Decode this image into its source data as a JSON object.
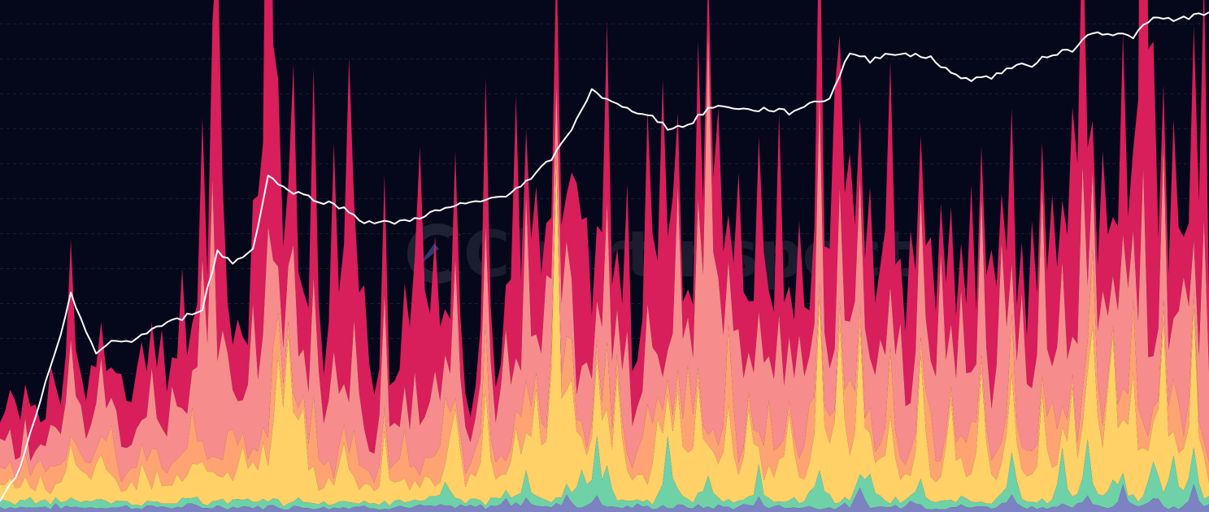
{
  "watermark": {
    "text": "Chartinspect"
  },
  "chart_data": {
    "type": "area",
    "title": "",
    "xlabel": "",
    "ylabel": "",
    "grid": true,
    "legend": "none",
    "background": "#05071a",
    "grid_color": "#2a2d40",
    "price_color": "#ffffff",
    "n_points": 240,
    "price_log_scale": true,
    "price_ylim": [
      1,
      1000
    ],
    "stack_ylim": [
      0,
      100
    ],
    "price": {
      "name": "",
      "anchors": [
        [
          0,
          1.0
        ],
        [
          4,
          1.6
        ],
        [
          8,
          4.2
        ],
        [
          12,
          10.0
        ],
        [
          14,
          18.0
        ],
        [
          16,
          13.0
        ],
        [
          19,
          8.0
        ],
        [
          22,
          9.2
        ],
        [
          26,
          9.5
        ],
        [
          31,
          11.5
        ],
        [
          36,
          13.0
        ],
        [
          40,
          15.0
        ],
        [
          43,
          33.0
        ],
        [
          46,
          28.0
        ],
        [
          50,
          34.0
        ],
        [
          53,
          95.0
        ],
        [
          56,
          80.0
        ],
        [
          60,
          72.0
        ],
        [
          64,
          66.0
        ],
        [
          68,
          60.0
        ],
        [
          72,
          50.0
        ],
        [
          76,
          49.0
        ],
        [
          80,
          50.0
        ],
        [
          85,
          56.0
        ],
        [
          90,
          62.0
        ],
        [
          95,
          66.0
        ],
        [
          100,
          73.0
        ],
        [
          105,
          90.0
        ],
        [
          110,
          130.0
        ],
        [
          114,
          205.0
        ],
        [
          117,
          320.0
        ],
        [
          120,
          270.0
        ],
        [
          124,
          238.0
        ],
        [
          128,
          225.0
        ],
        [
          132,
          185.0
        ],
        [
          136,
          190.0
        ],
        [
          140,
          242.0
        ],
        [
          144,
          250.0
        ],
        [
          148,
          235.0
        ],
        [
          152,
          240.0
        ],
        [
          156,
          228.0
        ],
        [
          160,
          258.0
        ],
        [
          164,
          280.0
        ],
        [
          168,
          530.0
        ],
        [
          172,
          470.0
        ],
        [
          176,
          530.0
        ],
        [
          180,
          505.0
        ],
        [
          184,
          495.0
        ],
        [
          188,
          390.0
        ],
        [
          192,
          365.0
        ],
        [
          196,
          375.0
        ],
        [
          200,
          430.0
        ],
        [
          204,
          445.0
        ],
        [
          208,
          520.0
        ],
        [
          212,
          545.0
        ],
        [
          216,
          710.0
        ],
        [
          220,
          680.0
        ],
        [
          224,
          660.0
        ],
        [
          228,
          850.0
        ],
        [
          232,
          830.0
        ],
        [
          236,
          880.0
        ],
        [
          239,
          900.0
        ]
      ]
    },
    "series": [
      {
        "color": "#7d82c2",
        "base": 1.0,
        "peaks": [
          [
            100,
            2
          ],
          [
            104,
            2
          ],
          [
            112,
            3
          ],
          [
            118,
            3
          ],
          [
            150,
            2
          ],
          [
            170,
            3
          ],
          [
            180,
            2
          ],
          [
            200,
            3
          ],
          [
            215,
            2
          ],
          [
            222,
            4
          ],
          [
            228,
            3
          ],
          [
            236,
            5
          ]
        ]
      },
      {
        "color": "#6fd1a8",
        "base": 1.2,
        "peaks": [
          [
            88,
            3
          ],
          [
            104,
            4
          ],
          [
            115,
            9
          ],
          [
            118,
            8
          ],
          [
            120,
            6
          ],
          [
            132,
            12
          ],
          [
            140,
            6
          ],
          [
            150,
            4
          ],
          [
            162,
            8
          ],
          [
            172,
            6
          ],
          [
            182,
            5
          ],
          [
            200,
            6
          ],
          [
            210,
            8
          ],
          [
            215,
            12
          ],
          [
            220,
            5
          ],
          [
            228,
            7
          ],
          [
            232,
            10
          ],
          [
            236,
            6
          ]
        ]
      },
      {
        "color": "#ffd166",
        "base": 4.0,
        "peaks": [
          [
            14,
            6
          ],
          [
            20,
            4
          ],
          [
            28,
            3
          ],
          [
            40,
            6
          ],
          [
            48,
            8
          ],
          [
            52,
            10
          ],
          [
            55,
            18
          ],
          [
            57,
            25
          ],
          [
            60,
            14
          ],
          [
            68,
            10
          ],
          [
            76,
            8
          ],
          [
            90,
            10
          ],
          [
            96,
            14
          ],
          [
            102,
            12
          ],
          [
            106,
            18
          ],
          [
            110,
            65
          ],
          [
            113,
            14
          ],
          [
            118,
            18
          ],
          [
            122,
            22
          ],
          [
            130,
            14
          ],
          [
            134,
            20
          ],
          [
            138,
            22
          ],
          [
            144,
            16
          ],
          [
            148,
            14
          ],
          [
            156,
            18
          ],
          [
            162,
            22
          ],
          [
            166,
            34
          ],
          [
            170,
            22
          ],
          [
            176,
            14
          ],
          [
            182,
            18
          ],
          [
            188,
            16
          ],
          [
            194,
            20
          ],
          [
            200,
            16
          ],
          [
            206,
            20
          ],
          [
            212,
            18
          ],
          [
            216,
            26
          ],
          [
            220,
            30
          ],
          [
            224,
            20
          ],
          [
            230,
            26
          ],
          [
            236,
            22
          ]
        ]
      },
      {
        "color": "#ffa372",
        "base": 3.0,
        "peaks": [
          [
            10,
            4
          ],
          [
            22,
            6
          ],
          [
            30,
            5
          ],
          [
            38,
            6
          ],
          [
            46,
            8
          ],
          [
            54,
            10
          ],
          [
            62,
            8
          ],
          [
            70,
            6
          ],
          [
            80,
            5
          ],
          [
            88,
            8
          ],
          [
            96,
            10
          ],
          [
            104,
            8
          ],
          [
            112,
            10
          ],
          [
            120,
            8
          ],
          [
            128,
            10
          ],
          [
            136,
            12
          ],
          [
            144,
            14
          ],
          [
            152,
            10
          ],
          [
            160,
            12
          ],
          [
            168,
            16
          ],
          [
            176,
            10
          ],
          [
            184,
            8
          ],
          [
            192,
            10
          ],
          [
            200,
            8
          ],
          [
            208,
            10
          ],
          [
            216,
            12
          ],
          [
            224,
            10
          ],
          [
            232,
            12
          ]
        ]
      },
      {
        "color": "#f78c8c",
        "base": 5.0,
        "peaks": [
          [
            14,
            20
          ],
          [
            20,
            8
          ],
          [
            24,
            6
          ],
          [
            30,
            8
          ],
          [
            34,
            12
          ],
          [
            40,
            22
          ],
          [
            42,
            40
          ],
          [
            44,
            18
          ],
          [
            50,
            22
          ],
          [
            53,
            30
          ],
          [
            58,
            18
          ],
          [
            62,
            22
          ],
          [
            66,
            20
          ],
          [
            70,
            18
          ],
          [
            76,
            14
          ],
          [
            82,
            16
          ],
          [
            86,
            14
          ],
          [
            90,
            18
          ],
          [
            96,
            14
          ],
          [
            100,
            20
          ],
          [
            104,
            24
          ],
          [
            108,
            22
          ],
          [
            112,
            20
          ],
          [
            116,
            16
          ],
          [
            120,
            18
          ],
          [
            124,
            16
          ],
          [
            128,
            20
          ],
          [
            134,
            26
          ],
          [
            138,
            20
          ],
          [
            140,
            54
          ],
          [
            142,
            28
          ],
          [
            146,
            24
          ],
          [
            150,
            26
          ],
          [
            154,
            22
          ],
          [
            158,
            20
          ],
          [
            162,
            24
          ],
          [
            166,
            20
          ],
          [
            170,
            28
          ],
          [
            174,
            24
          ],
          [
            178,
            26
          ],
          [
            182,
            24
          ],
          [
            186,
            28
          ],
          [
            190,
            22
          ],
          [
            194,
            26
          ],
          [
            198,
            30
          ],
          [
            202,
            28
          ],
          [
            206,
            24
          ],
          [
            210,
            26
          ],
          [
            214,
            34
          ],
          [
            218,
            28
          ],
          [
            222,
            30
          ],
          [
            226,
            34
          ],
          [
            230,
            32
          ],
          [
            234,
            28
          ],
          [
            238,
            30
          ]
        ]
      },
      {
        "color": "#d81e5b",
        "base": 4.0,
        "peaks": [
          [
            3,
            8
          ],
          [
            6,
            10
          ],
          [
            10,
            12
          ],
          [
            14,
            14
          ],
          [
            18,
            10
          ],
          [
            24,
            12
          ],
          [
            28,
            14
          ],
          [
            32,
            16
          ],
          [
            36,
            18
          ],
          [
            40,
            20
          ],
          [
            43,
            70
          ],
          [
            47,
            16
          ],
          [
            51,
            28
          ],
          [
            53,
            110
          ],
          [
            55,
            24
          ],
          [
            58,
            34
          ],
          [
            62,
            38
          ],
          [
            66,
            28
          ],
          [
            69,
            56
          ],
          [
            72,
            30
          ],
          [
            76,
            18
          ],
          [
            80,
            20
          ],
          [
            83,
            46
          ],
          [
            86,
            22
          ],
          [
            90,
            18
          ],
          [
            96,
            20
          ],
          [
            102,
            48
          ],
          [
            106,
            30
          ],
          [
            110,
            24
          ],
          [
            114,
            30
          ],
          [
            116,
            28
          ],
          [
            120,
            26
          ],
          [
            124,
            24
          ],
          [
            128,
            30
          ],
          [
            131,
            44
          ],
          [
            133,
            26
          ],
          [
            138,
            24
          ],
          [
            142,
            30
          ],
          [
            146,
            26
          ],
          [
            150,
            34
          ],
          [
            154,
            30
          ],
          [
            158,
            24
          ],
          [
            162,
            34
          ],
          [
            165,
            58
          ],
          [
            168,
            36
          ],
          [
            172,
            30
          ],
          [
            176,
            48
          ],
          [
            180,
            32
          ],
          [
            184,
            28
          ],
          [
            188,
            26
          ],
          [
            192,
            30
          ],
          [
            196,
            24
          ],
          [
            200,
            28
          ],
          [
            204,
            26
          ],
          [
            208,
            34
          ],
          [
            212,
            40
          ],
          [
            214,
            50
          ],
          [
            218,
            30
          ],
          [
            222,
            36
          ],
          [
            226,
            110
          ],
          [
            228,
            40
          ],
          [
            232,
            34
          ],
          [
            236,
            38
          ],
          [
            238,
            34
          ]
        ]
      }
    ]
  }
}
